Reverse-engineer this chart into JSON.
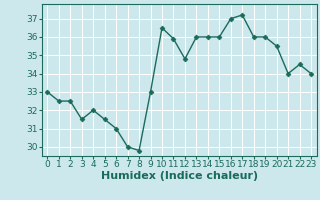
{
  "x": [
    0,
    1,
    2,
    3,
    4,
    5,
    6,
    7,
    8,
    9,
    10,
    11,
    12,
    13,
    14,
    15,
    16,
    17,
    18,
    19,
    20,
    21,
    22,
    23
  ],
  "y": [
    33,
    32.5,
    32.5,
    31.5,
    32,
    31.5,
    31,
    30,
    29.8,
    33,
    36.5,
    35.9,
    34.8,
    36,
    36,
    36,
    37,
    37.2,
    36,
    36,
    35.5,
    34,
    34.5,
    34
  ],
  "line_color": "#1a6b5a",
  "marker": "D",
  "marker_size": 2.5,
  "bg_color": "#cde8ec",
  "grid_color": "#ffffff",
  "xlabel": "Humidex (Indice chaleur)",
  "ylim": [
    29.5,
    37.8
  ],
  "xlim": [
    -0.5,
    23.5
  ],
  "yticks": [
    30,
    31,
    32,
    33,
    34,
    35,
    36,
    37
  ],
  "xticks": [
    0,
    1,
    2,
    3,
    4,
    5,
    6,
    7,
    8,
    9,
    10,
    11,
    12,
    13,
    14,
    15,
    16,
    17,
    18,
    19,
    20,
    21,
    22,
    23
  ],
  "tick_fontsize": 6.5,
  "xlabel_fontsize": 8,
  "line_width": 1.0
}
